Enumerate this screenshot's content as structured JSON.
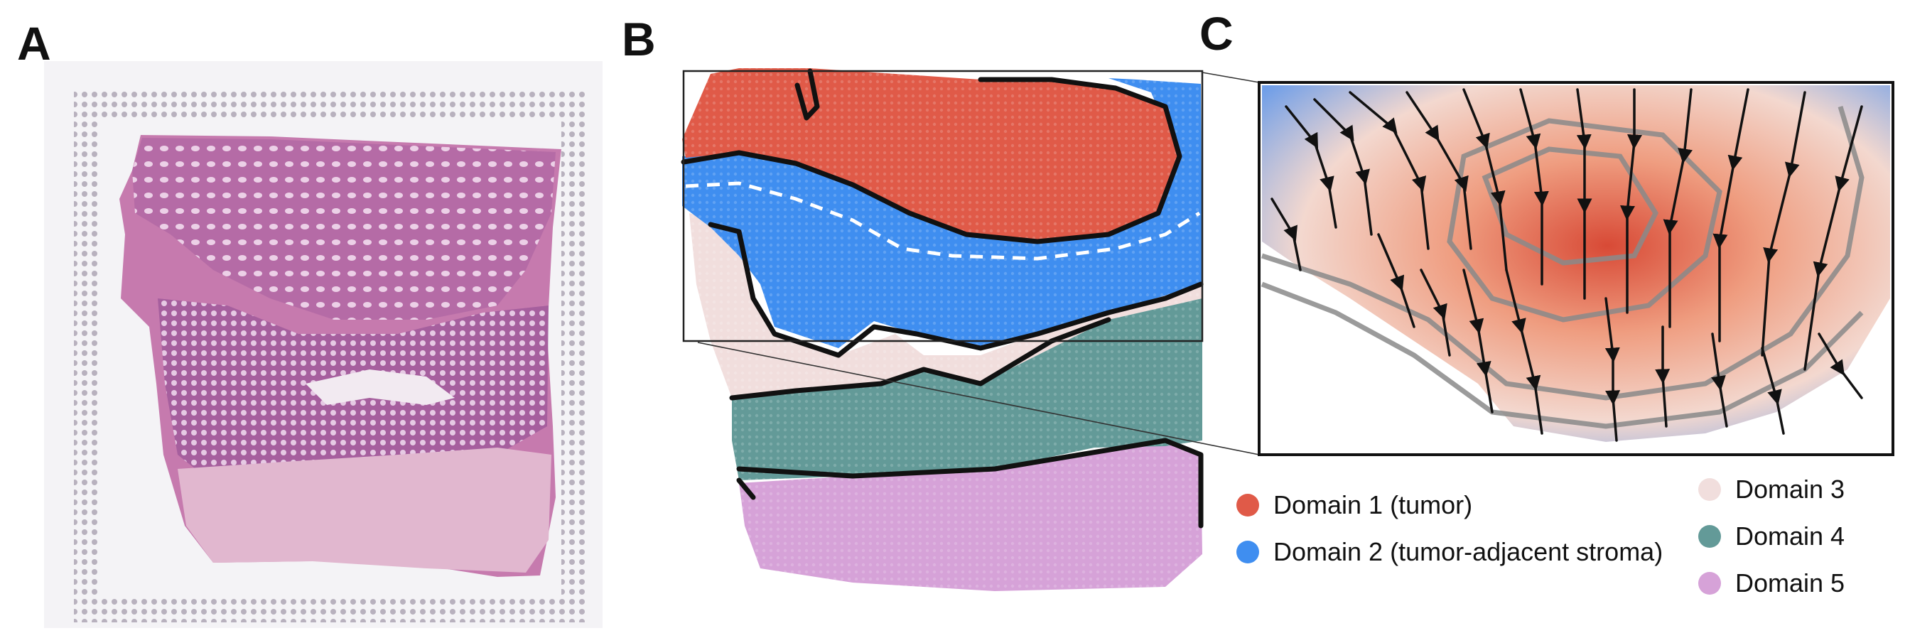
{
  "panels": {
    "a": "A",
    "b": "B",
    "c": "C"
  },
  "legend": [
    {
      "label": "Domain 1 (tumor)",
      "color": "#e05a48"
    },
    {
      "label": "Domain 2 (tumor-adjacent stroma)",
      "color": "#3f8ef0"
    },
    {
      "label": "Domain 3",
      "color": "#f1dedd"
    },
    {
      "label": "Domain 4",
      "color": "#639a98"
    },
    {
      "label": "Domain 5",
      "color": "#d6a2d8"
    }
  ],
  "colors": {
    "tissue_pink": "#c97ab0",
    "tissue_purple": "#7a3a82",
    "spot_grey": "#b6b0bc",
    "boundary": "#111111",
    "dashed_boundary": "#ffffff",
    "field_high": "#e06a52",
    "field_low": "#7aa6ea",
    "contour": "#8a8a8a"
  }
}
